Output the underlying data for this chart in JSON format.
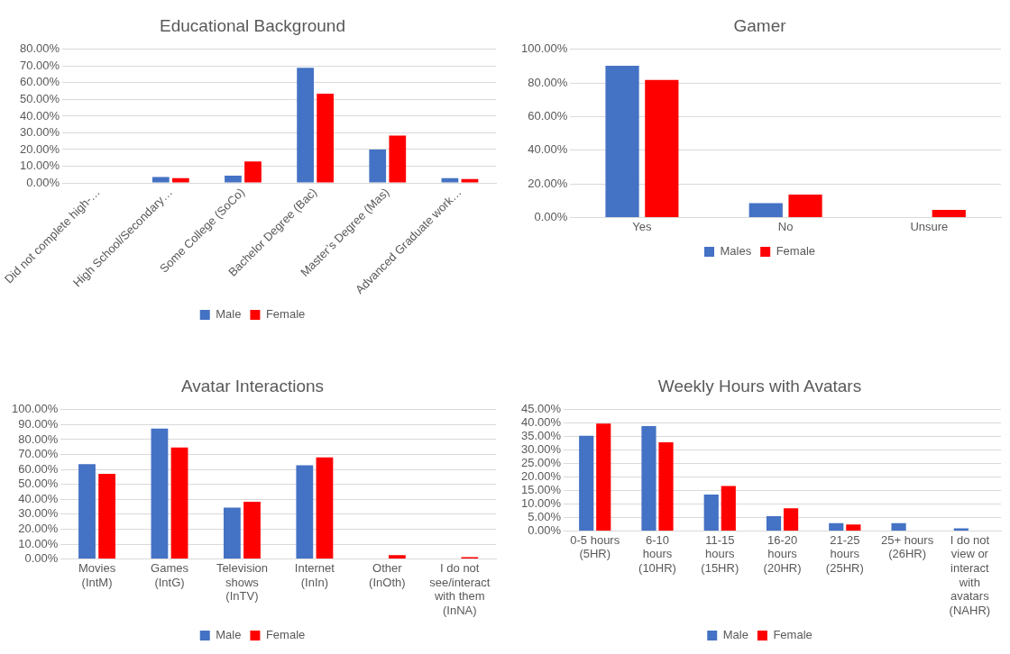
{
  "chart_data": [
    {
      "type": "bar",
      "title": "Educational Background",
      "categories": [
        "Did not complete high-…",
        "High School/Secondary…",
        "Some College (SoCo)",
        "Bachelor Degree (Bac)",
        "Master’s Degree (Mas)",
        "Advanced Graduate work…"
      ],
      "series": [
        {
          "name": "Male",
          "color": "#4472c4",
          "values": [
            0,
            3.5,
            4.3,
            69,
            20,
            2.9
          ]
        },
        {
          "name": "Female",
          "color": "#ff0000",
          "values": [
            0,
            2.9,
            12.9,
            53.5,
            28.3,
            2.3
          ]
        }
      ],
      "ylim": [
        0,
        80
      ],
      "yticks": [
        {
          "value": 0,
          "label": "0.00%"
        },
        {
          "value": 10,
          "label": "10.00%"
        },
        {
          "value": 20,
          "label": "20.00%"
        },
        {
          "value": 30,
          "label": "30.00%"
        },
        {
          "value": 40,
          "label": "40.00%"
        },
        {
          "value": 50,
          "label": "50.00%"
        },
        {
          "value": 60,
          "label": "60.00%"
        },
        {
          "value": 70,
          "label": "70.00%"
        },
        {
          "value": 80,
          "label": "80.00%"
        }
      ],
      "grid": "y",
      "legend": "bottom"
    },
    {
      "type": "bar",
      "title": "Gamer",
      "categories": [
        "Yes",
        "No",
        "Unsure"
      ],
      "series": [
        {
          "name": "Males",
          "color": "#4472c4",
          "values": [
            90.3,
            8.5,
            0
          ]
        },
        {
          "name": "Female",
          "color": "#ff0000",
          "values": [
            81.8,
            13.6,
            4.5
          ]
        }
      ],
      "ylim": [
        0,
        100
      ],
      "yticks": [
        {
          "value": 0,
          "label": "0.00%"
        },
        {
          "value": 20,
          "label": "20.00%"
        },
        {
          "value": 40,
          "label": "40.00%"
        },
        {
          "value": 60,
          "label": "60.00%"
        },
        {
          "value": 80,
          "label": "80.00%"
        },
        {
          "value": 100,
          "label": "100.00%"
        }
      ],
      "grid": "y",
      "legend": "bottom"
    },
    {
      "type": "bar",
      "title": "Avatar Interactions",
      "categories": [
        "Movies (IntM)",
        "Games (IntG)",
        "Television shows (InTV)",
        "Internet (InIn)",
        "Other (InOth)",
        "I do not see/interact with them (InNA)"
      ],
      "series": [
        {
          "name": "Male",
          "color": "#4472c4",
          "values": [
            63.5,
            87.3,
            34.5,
            62.8,
            0,
            0
          ]
        },
        {
          "name": "Female",
          "color": "#ff0000",
          "values": [
            57.1,
            74.7,
            38.3,
            68,
            2.6,
            1.3
          ]
        }
      ],
      "ylim": [
        0,
        100
      ],
      "yticks": [
        {
          "value": 0,
          "label": "0.00%"
        },
        {
          "value": 10,
          "label": "10.00%"
        },
        {
          "value": 20,
          "label": "20.00%"
        },
        {
          "value": 30,
          "label": "30.00%"
        },
        {
          "value": 40,
          "label": "40.00%"
        },
        {
          "value": 50,
          "label": "50.00%"
        },
        {
          "value": 60,
          "label": "60.00%"
        },
        {
          "value": 70,
          "label": "70.00%"
        },
        {
          "value": 80,
          "label": "80.00%"
        },
        {
          "value": 90,
          "label": "90.00%"
        },
        {
          "value": 100,
          "label": "100.00%"
        }
      ],
      "grid": "y",
      "legend": "bottom"
    },
    {
      "type": "bar",
      "title": "Weekly Hours with Avatars",
      "categories": [
        "0-5 hours (5HR)",
        "6-10 hours (10HR)",
        "11-15 hours (15HR)",
        "16-20 hours (20HR)",
        "21-25 hours (25HR)",
        "25+ hours (26HR)",
        "I do not view or interact with avatars (NAHR)"
      ],
      "series": [
        {
          "name": "Male",
          "color": "#4472c4",
          "values": [
            35.3,
            38.9,
            13.5,
            5.5,
            2.9,
            2.9,
            1.0
          ]
        },
        {
          "name": "Female",
          "color": "#ff0000",
          "values": [
            39.8,
            32.9,
            16.7,
            8.4,
            2.4,
            0,
            0
          ]
        }
      ],
      "ylim": [
        0,
        45
      ],
      "yticks": [
        {
          "value": 0,
          "label": "0.00%"
        },
        {
          "value": 5,
          "label": "5.00%"
        },
        {
          "value": 10,
          "label": "10.00%"
        },
        {
          "value": 15,
          "label": "15.00%"
        },
        {
          "value": 20,
          "label": "20.00%"
        },
        {
          "value": 25,
          "label": "25.00%"
        },
        {
          "value": 30,
          "label": "30.00%"
        },
        {
          "value": 35,
          "label": "35.00%"
        },
        {
          "value": 40,
          "label": "40.00%"
        },
        {
          "value": 45,
          "label": "45.00%"
        }
      ],
      "grid": "y",
      "legend": "bottom"
    }
  ]
}
